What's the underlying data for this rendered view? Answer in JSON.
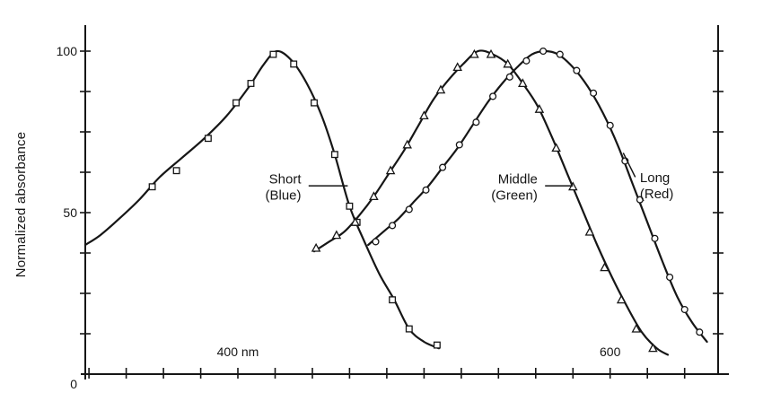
{
  "figure": {
    "background": "#ffffff",
    "ink": "#161616"
  },
  "chart_data": {
    "type": "line",
    "title": "",
    "ylabel": "Normalized absorbance",
    "x_unit": "nm",
    "xlim": [
      318,
      658
    ],
    "ylim": [
      0,
      107.5
    ],
    "grid": false,
    "legend_position": "inline-annotations",
    "xticks": [
      {
        "value": 400,
        "label": "400 nm"
      },
      {
        "value": 600,
        "label": "600"
      }
    ],
    "yticks": [
      {
        "value": 0,
        "label": "0"
      },
      {
        "value": 50,
        "label": "50"
      },
      {
        "value": 100,
        "label": "100"
      }
    ],
    "minor_xticks": [
      320,
      340,
      360,
      380,
      400,
      420,
      440,
      460,
      480,
      500,
      520,
      540,
      560,
      580,
      600,
      620,
      640
    ],
    "minor_yticks": [
      12.5,
      25,
      37.5,
      50,
      62.5,
      75,
      87.5,
      100
    ],
    "series": [
      {
        "id": "short",
        "name": "Short (Blue)",
        "marker": "square",
        "curve": [
          [
            318,
            40
          ],
          [
            326,
            43
          ],
          [
            336,
            48
          ],
          [
            347,
            54
          ],
          [
            358,
            61
          ],
          [
            370,
            67
          ],
          [
            382,
            73
          ],
          [
            394,
            80
          ],
          [
            406,
            89
          ],
          [
            414,
            96
          ],
          [
            421,
            100
          ],
          [
            429,
            97
          ],
          [
            437,
            90
          ],
          [
            445,
            80
          ],
          [
            452,
            68
          ],
          [
            460,
            52
          ],
          [
            468,
            41
          ],
          [
            476,
            31
          ],
          [
            484,
            23
          ],
          [
            492,
            14
          ],
          [
            500,
            10
          ],
          [
            508,
            8
          ]
        ],
        "markers": [
          [
            354,
            58
          ],
          [
            367,
            63
          ],
          [
            384,
            73
          ],
          [
            399,
            84
          ],
          [
            407,
            90
          ],
          [
            419,
            99
          ],
          [
            430,
            96
          ],
          [
            441,
            84
          ],
          [
            452,
            68
          ],
          [
            460,
            52
          ],
          [
            464,
            47
          ],
          [
            483,
            23
          ],
          [
            492,
            14
          ],
          [
            507,
            9
          ]
        ]
      },
      {
        "id": "middle",
        "name": "Middle (Green)",
        "marker": "triangle",
        "curve": [
          [
            441,
            38
          ],
          [
            449,
            41
          ],
          [
            457,
            44
          ],
          [
            465,
            49
          ],
          [
            473,
            55
          ],
          [
            481,
            62
          ],
          [
            489,
            69
          ],
          [
            497,
            77
          ],
          [
            505,
            85
          ],
          [
            513,
            91
          ],
          [
            521,
            96
          ],
          [
            529,
            100
          ],
          [
            537,
            99
          ],
          [
            545,
            96
          ],
          [
            553,
            90
          ],
          [
            561,
            83
          ],
          [
            569,
            73
          ],
          [
            577,
            62
          ],
          [
            585,
            51
          ],
          [
            593,
            40
          ],
          [
            601,
            30
          ],
          [
            609,
            21
          ],
          [
            617,
            13
          ],
          [
            625,
            8
          ],
          [
            631,
            6
          ]
        ],
        "markers": [
          [
            442,
            39
          ],
          [
            453,
            43
          ],
          [
            463,
            47
          ],
          [
            473,
            55
          ],
          [
            482,
            63
          ],
          [
            491,
            71
          ],
          [
            500,
            80
          ],
          [
            509,
            88
          ],
          [
            518,
            95
          ],
          [
            527,
            99
          ],
          [
            536,
            99
          ],
          [
            545,
            96
          ],
          [
            553,
            90
          ],
          [
            562,
            82
          ],
          [
            571,
            70
          ],
          [
            580,
            58
          ],
          [
            589,
            44
          ],
          [
            597,
            33
          ],
          [
            606,
            23
          ],
          [
            614,
            14
          ],
          [
            623,
            8
          ]
        ]
      },
      {
        "id": "long",
        "name": "Long (Red)",
        "marker": "circle",
        "curve": [
          [
            470,
            40
          ],
          [
            478,
            44
          ],
          [
            486,
            48
          ],
          [
            494,
            53
          ],
          [
            502,
            58
          ],
          [
            510,
            64
          ],
          [
            518,
            70
          ],
          [
            526,
            77
          ],
          [
            534,
            84
          ],
          [
            542,
            90
          ],
          [
            550,
            95
          ],
          [
            558,
            99
          ],
          [
            565,
            100
          ],
          [
            572,
            99
          ],
          [
            580,
            95
          ],
          [
            588,
            89
          ],
          [
            596,
            81
          ],
          [
            604,
            71
          ],
          [
            612,
            59
          ],
          [
            620,
            47
          ],
          [
            628,
            35
          ],
          [
            636,
            24
          ],
          [
            644,
            16
          ],
          [
            652,
            10
          ]
        ],
        "markers": [
          [
            474,
            41
          ],
          [
            483,
            46
          ],
          [
            492,
            51
          ],
          [
            501,
            57
          ],
          [
            510,
            64
          ],
          [
            519,
            71
          ],
          [
            528,
            78
          ],
          [
            537,
            86
          ],
          [
            546,
            92
          ],
          [
            555,
            97
          ],
          [
            564,
            100
          ],
          [
            573,
            99
          ],
          [
            582,
            94
          ],
          [
            591,
            87
          ],
          [
            600,
            77
          ],
          [
            608,
            66
          ],
          [
            616,
            54
          ],
          [
            624,
            42
          ],
          [
            632,
            30
          ],
          [
            640,
            20
          ],
          [
            648,
            13
          ]
        ]
      }
    ],
    "annotations": [
      {
        "id": "short-blue",
        "lines": [
          "Short",
          "(Blue)"
        ],
        "align": "right",
        "tx": 434,
        "ty": 59,
        "leader": [
          [
            438,
            58.3
          ],
          [
            459,
            58.3
          ]
        ]
      },
      {
        "id": "middle-green",
        "lines": [
          "Middle",
          "(Green)"
        ],
        "align": "right",
        "tx": 561,
        "ty": 59,
        "leader": [
          [
            565,
            58.3
          ],
          [
            580,
            58.3
          ]
        ]
      },
      {
        "id": "long-red",
        "lines": [
          "Long",
          "(Red)"
        ],
        "align": "left",
        "tx": 616,
        "ty": 59.5,
        "leader": [
          [
            613.5,
            61
          ],
          [
            607,
            68.5
          ]
        ]
      }
    ]
  }
}
